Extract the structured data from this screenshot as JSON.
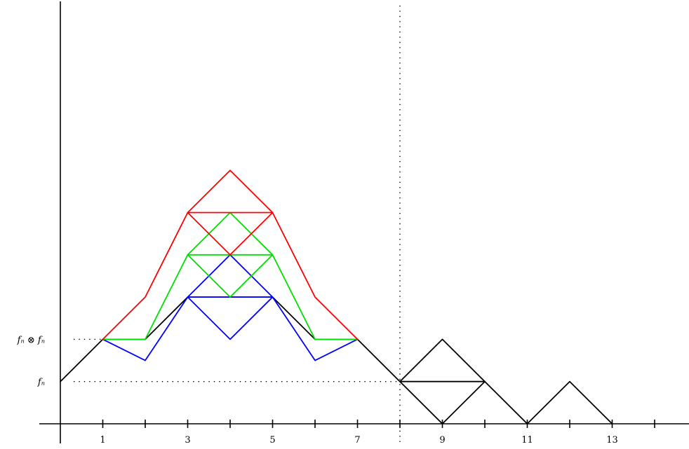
{
  "diagram": {
    "x_ticks": [
      1,
      2,
      3,
      4,
      5,
      6,
      7,
      8,
      9,
      10,
      11,
      12,
      13,
      14
    ],
    "x_tick_labels": [
      {
        "x": 1,
        "text": "1"
      },
      {
        "x": 3,
        "text": "3"
      },
      {
        "x": 5,
        "text": "5"
      },
      {
        "x": 7,
        "text": "7"
      },
      {
        "x": 9,
        "text": "9"
      },
      {
        "x": 11,
        "text": "11"
      },
      {
        "x": 13,
        "text": "13"
      }
    ],
    "y_labels": [
      {
        "level": 2,
        "text": "fₙ ⊗ fₙ"
      },
      {
        "level": 1,
        "text": "fₙ"
      }
    ],
    "vertical_dotted_at_x": 8,
    "colors": {
      "axis": "#000000",
      "black": "#000000",
      "blue": "#0000ff",
      "green": "#00e000",
      "red": "#ff0000"
    },
    "paths": [
      {
        "name": "black-main-path",
        "color": "black",
        "points": [
          [
            0,
            1
          ],
          [
            1,
            2
          ],
          [
            2,
            2
          ],
          [
            3,
            3
          ],
          [
            4,
            3
          ],
          [
            5,
            3
          ],
          [
            6,
            2
          ],
          [
            7,
            2
          ],
          [
            8,
            1
          ],
          [
            9,
            2
          ],
          [
            10,
            1
          ],
          [
            11,
            0
          ],
          [
            12,
            1
          ],
          [
            13,
            0
          ]
        ]
      },
      {
        "name": "black-diamond-lower",
        "color": "black",
        "points": [
          [
            8,
            1
          ],
          [
            9,
            0
          ],
          [
            10,
            1
          ]
        ]
      },
      {
        "name": "black-diamond-mid",
        "color": "black",
        "points": [
          [
            8,
            1
          ],
          [
            10,
            1
          ]
        ]
      },
      {
        "name": "blue-path",
        "color": "blue",
        "points": [
          [
            1,
            2
          ],
          [
            2,
            1.5
          ],
          [
            3,
            3
          ],
          [
            4,
            2
          ],
          [
            5,
            3
          ],
          [
            6,
            1.5
          ],
          [
            7,
            2
          ]
        ]
      },
      {
        "name": "blue-upper",
        "color": "blue",
        "points": [
          [
            3,
            3
          ],
          [
            4,
            4
          ],
          [
            5,
            3
          ]
        ]
      },
      {
        "name": "blue-mid-line",
        "color": "blue",
        "points": [
          [
            3,
            3
          ],
          [
            5,
            3
          ]
        ]
      },
      {
        "name": "green-path",
        "color": "green",
        "points": [
          [
            1,
            2
          ],
          [
            2,
            2
          ],
          [
            3,
            4
          ],
          [
            4,
            3
          ],
          [
            5,
            4
          ],
          [
            6,
            2
          ],
          [
            7,
            2
          ]
        ]
      },
      {
        "name": "green-upper",
        "color": "green",
        "points": [
          [
            3,
            4
          ],
          [
            4,
            5
          ],
          [
            5,
            4
          ]
        ]
      },
      {
        "name": "green-mid-line",
        "color": "green",
        "points": [
          [
            3,
            4
          ],
          [
            5,
            4
          ]
        ]
      },
      {
        "name": "red-path",
        "color": "red",
        "points": [
          [
            1,
            2
          ],
          [
            2,
            3
          ],
          [
            3,
            5
          ],
          [
            4,
            4
          ],
          [
            5,
            5
          ],
          [
            6,
            3
          ],
          [
            7,
            2
          ]
        ]
      },
      {
        "name": "red-upper",
        "color": "red",
        "points": [
          [
            3,
            5
          ],
          [
            4,
            6
          ],
          [
            5,
            5
          ]
        ]
      },
      {
        "name": "red-mid-line",
        "color": "red",
        "points": [
          [
            3,
            5
          ],
          [
            5,
            5
          ]
        ]
      }
    ]
  }
}
